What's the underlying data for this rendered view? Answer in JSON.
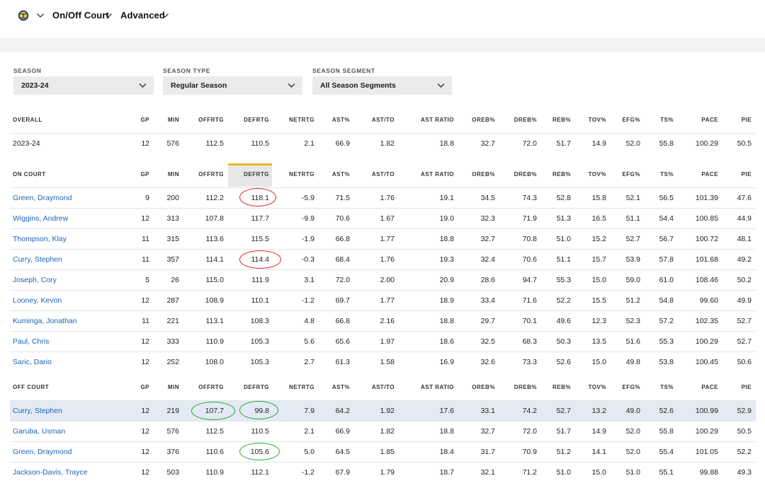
{
  "nav": {
    "logo_icon": "warriors-logo-icon",
    "items": [
      {
        "label": "On/Off Court"
      },
      {
        "label": "Advanced"
      }
    ]
  },
  "filters": [
    {
      "label": "SEASON",
      "value": "2023-24"
    },
    {
      "label": "SEASON TYPE",
      "value": "Regular Season"
    },
    {
      "label": "SEASON SEGMENT",
      "value": "All Season Segments"
    }
  ],
  "columns": [
    "GP",
    "MIN",
    "OFFRTG",
    "DEFRTG",
    "NETRTG",
    "AST%",
    "AST/TO",
    "AST RATIO",
    "OREB%",
    "DREB%",
    "REB%",
    "TOV%",
    "EFG%",
    "TS%",
    "PACE",
    "PIE"
  ],
  "sorted_column": "DEFRTG",
  "colors": {
    "link": "#1d63b8",
    "sort_accent": "#f0b323",
    "highlight_row": "#e3eaf3",
    "annotation_red": "#e02020",
    "annotation_green": "#1fa83a"
  },
  "sections": [
    {
      "title": "OVERALL",
      "rows": [
        {
          "name": "2023-24",
          "values": [
            "12",
            "576",
            "112.5",
            "110.5",
            "2.1",
            "66.9",
            "1.82",
            "18.8",
            "32.7",
            "72.0",
            "51.7",
            "14.9",
            "52.0",
            "55.8",
            "100.29",
            "50.5"
          ]
        }
      ]
    },
    {
      "title": "ON COURT",
      "rows": [
        {
          "name": "Green, Draymond",
          "values": [
            "9",
            "200",
            "112.2",
            "118.1",
            "-5.9",
            "71.5",
            "1.76",
            "19.1",
            "34.5",
            "74.3",
            "52.8",
            "15.8",
            "52.1",
            "56.5",
            "101.39",
            "47.6"
          ]
        },
        {
          "name": "Wiggins, Andrew",
          "values": [
            "12",
            "313",
            "107.8",
            "117.7",
            "-9.9",
            "70.6",
            "1.67",
            "19.0",
            "32.3",
            "71.9",
            "51.3",
            "16.5",
            "51.1",
            "54.4",
            "100.85",
            "44.9"
          ]
        },
        {
          "name": "Thompson, Klay",
          "values": [
            "11",
            "315",
            "113.6",
            "115.5",
            "-1.9",
            "66.8",
            "1.77",
            "18.8",
            "32.7",
            "70.8",
            "51.0",
            "15.2",
            "52.7",
            "56.7",
            "100.72",
            "48.1"
          ]
        },
        {
          "name": "Curry, Stephen",
          "values": [
            "11",
            "357",
            "114.1",
            "114.4",
            "-0.3",
            "68.4",
            "1.76",
            "19.3",
            "32.4",
            "70.6",
            "51.1",
            "15.7",
            "53.9",
            "57.8",
            "101.68",
            "49.2"
          ]
        },
        {
          "name": "Joseph, Cory",
          "values": [
            "5",
            "26",
            "115.0",
            "111.9",
            "3.1",
            "72.0",
            "2.00",
            "20.9",
            "28.6",
            "94.7",
            "55.3",
            "15.0",
            "59.0",
            "61.0",
            "108.46",
            "50.2"
          ]
        },
        {
          "name": "Looney, Kevon",
          "values": [
            "12",
            "287",
            "108.9",
            "110.1",
            "-1.2",
            "69.7",
            "1.77",
            "18.9",
            "33.4",
            "71.6",
            "52.2",
            "15.5",
            "51.2",
            "54.8",
            "99.60",
            "49.9"
          ]
        },
        {
          "name": "Kuminga, Jonathan",
          "values": [
            "11",
            "221",
            "113.1",
            "108.3",
            "4.8",
            "66.8",
            "2.16",
            "18.8",
            "29.7",
            "70.1",
            "49.6",
            "12.3",
            "52.3",
            "57.2",
            "102.35",
            "52.7"
          ]
        },
        {
          "name": "Paul, Chris",
          "values": [
            "12",
            "333",
            "110.9",
            "105.3",
            "5.6",
            "65.6",
            "1.97",
            "18.6",
            "32.5",
            "68.3",
            "50.3",
            "13.5",
            "51.6",
            "55.3",
            "100.29",
            "52.7"
          ]
        },
        {
          "name": "Saric, Dario",
          "values": [
            "12",
            "252",
            "108.0",
            "105.3",
            "2.7",
            "61.3",
            "1.58",
            "16.9",
            "32.6",
            "73.3",
            "52.6",
            "15.0",
            "49.8",
            "53.8",
            "100.45",
            "50.6"
          ]
        }
      ]
    },
    {
      "title": "OFF COURT",
      "rows": [
        {
          "name": "Curry, Stephen",
          "values": [
            "12",
            "219",
            "107.7",
            "99.8",
            "7.9",
            "64.2",
            "1.92",
            "17.6",
            "33.1",
            "74.2",
            "52.7",
            "13.2",
            "49.0",
            "52.6",
            "100.99",
            "52.9"
          ]
        },
        {
          "name": "Garuba, Usman",
          "values": [
            "12",
            "576",
            "112.5",
            "110.5",
            "2.1",
            "66.9",
            "1.82",
            "18.8",
            "32.7",
            "72.0",
            "51.7",
            "14.9",
            "52.0",
            "55.8",
            "100.29",
            "50.5"
          ]
        },
        {
          "name": "Green, Draymond",
          "values": [
            "12",
            "376",
            "110.6",
            "105.6",
            "5.0",
            "64.5",
            "1.85",
            "18.4",
            "31.7",
            "70.9",
            "51.2",
            "14.1",
            "52.0",
            "55.4",
            "101.05",
            "52.2"
          ]
        },
        {
          "name": "Jackson-Davis, Trayce",
          "values": [
            "12",
            "503",
            "110.9",
            "112.1",
            "-1.2",
            "67.9",
            "1.79",
            "18.7",
            "32.1",
            "71.2",
            "51.0",
            "15.0",
            "51.0",
            "55.1",
            "99.88",
            "49.3"
          ]
        }
      ]
    }
  ]
}
